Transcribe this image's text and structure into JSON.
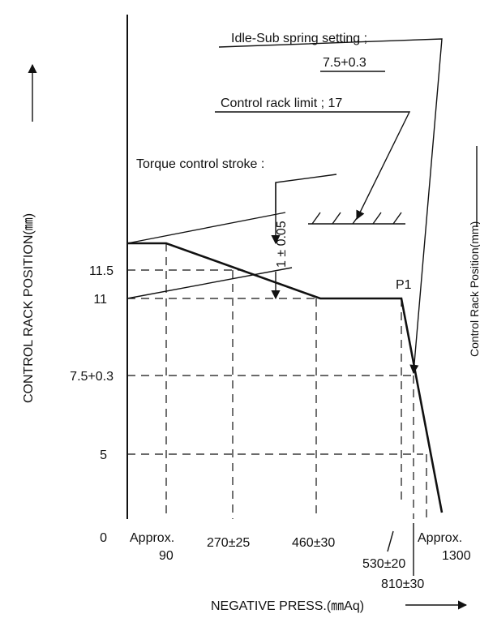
{
  "annotations": {
    "idle_sub": "Idle-Sub spring setting ;",
    "idle_sub_value": "7.5+0.3",
    "rack_limit": "Control rack limit ; 17",
    "torque_stroke": "Torque control stroke :",
    "stroke_value": "1 ± 0.05",
    "point": "P1"
  },
  "y_axis": {
    "title": "CONTROL RACK POSITION(㎜)",
    "labels": [
      "11.5",
      "11",
      "7.5+0.3",
      "5",
      "0"
    ]
  },
  "x_axis": {
    "title": "NEGATIVE PRESS.(㎜Aq)",
    "labels": [
      "Approx.",
      "90",
      "270±25",
      "460±30",
      "530±20",
      "Approx.",
      "1300",
      "810±30"
    ]
  },
  "right_cut_label": "Control Rack Position(mm)"
}
